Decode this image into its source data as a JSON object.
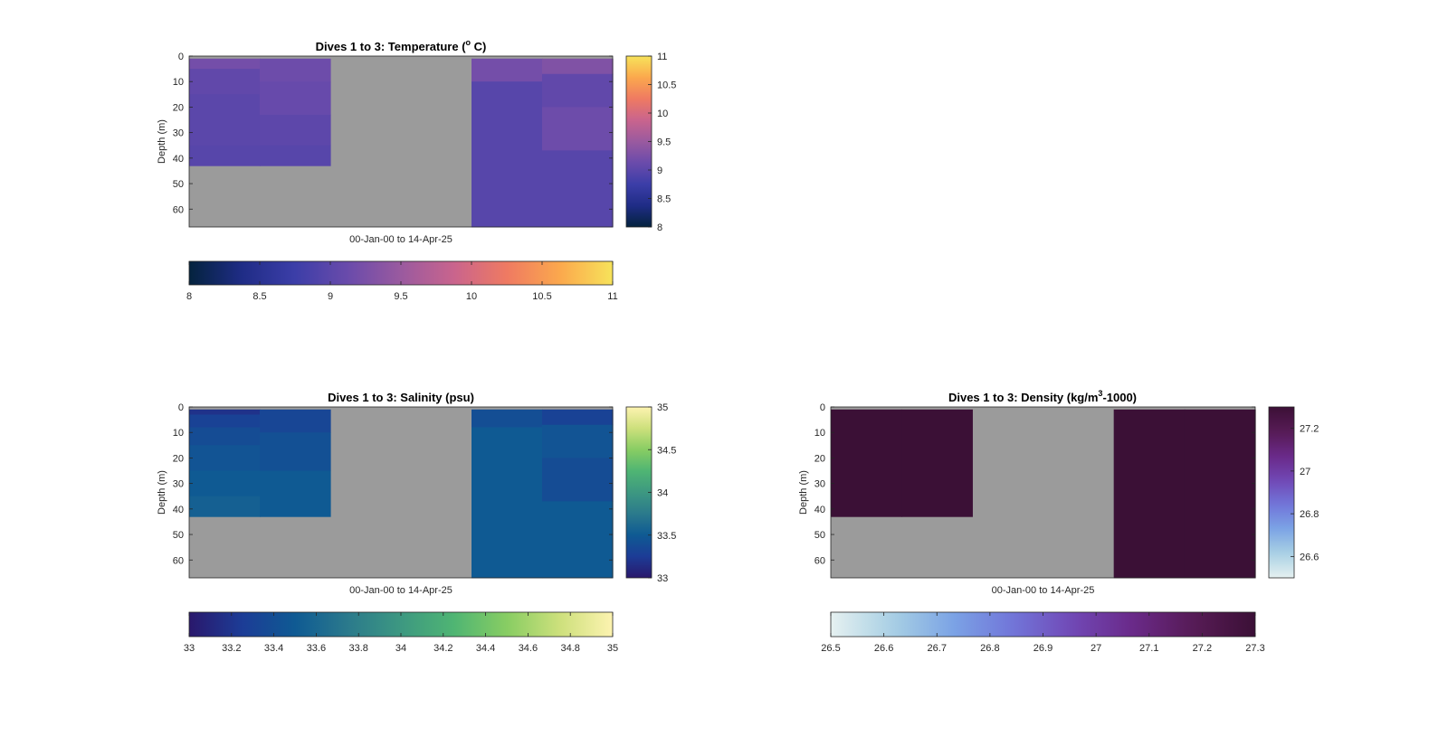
{
  "chart_data": [
    {
      "type": "heatmap",
      "title": "Dives 1 to 3: Temperature (",
      "title_sup": "o",
      "title_tail": " C)",
      "ylabel": "Depth (m)",
      "xlabel": "00-Jan-00 to 14-Apr-25",
      "ylim": [
        0,
        67
      ],
      "y_reversed": true,
      "yticks": [
        0,
        10,
        20,
        30,
        40,
        50,
        60
      ],
      "clim": [
        8,
        11
      ],
      "colormap": "thermal",
      "colorbar_ticks": [
        8,
        8.5,
        9,
        9.5,
        10,
        10.5,
        11
      ],
      "horizontal_colorbar_ticks": [
        8,
        8.5,
        9,
        9.5,
        10,
        10.5,
        11
      ],
      "nodata_color": "#9b9b9b",
      "columns": [
        {
          "cells": [
            [
              1,
              5,
              9.2
            ],
            [
              5,
              15,
              9.05
            ],
            [
              15,
              25,
              9.0
            ],
            [
              25,
              35,
              9.0
            ],
            [
              35,
              43,
              8.97
            ]
          ]
        },
        {
          "cells": [
            [
              1,
              10,
              9.15
            ],
            [
              10,
              23,
              9.1
            ],
            [
              23,
              35,
              9.02
            ],
            [
              35,
              43,
              8.97
            ]
          ]
        },
        {
          "cells": []
        },
        {
          "cells": []
        },
        {
          "cells": [
            [
              1,
              10,
              9.2
            ],
            [
              10,
              67,
              8.97
            ]
          ]
        },
        {
          "cells": [
            [
              1,
              7,
              9.3
            ],
            [
              7,
              20,
              9.05
            ],
            [
              20,
              37,
              9.15
            ],
            [
              37,
              67,
              8.97
            ]
          ]
        }
      ]
    },
    {
      "type": "heatmap",
      "title": "Dives 1 to 3: Salinity (psu)",
      "ylabel": "Depth (m)",
      "xlabel": "00-Jan-00 to 14-Apr-25",
      "ylim": [
        0,
        67
      ],
      "y_reversed": true,
      "yticks": [
        0,
        10,
        20,
        30,
        40,
        50,
        60
      ],
      "clim": [
        33,
        35
      ],
      "colormap": "haline",
      "colorbar_ticks": [
        33,
        33.5,
        34,
        34.5,
        35
      ],
      "horizontal_colorbar_ticks": [
        33,
        33.2,
        33.4,
        33.6,
        33.8,
        34,
        34.2,
        34.4,
        34.6,
        34.8,
        35
      ],
      "nodata_color": "#9b9b9b",
      "columns": [
        {
          "cells": [
            [
              1,
              3,
              33.18
            ],
            [
              3,
              8,
              33.3
            ],
            [
              8,
              15,
              33.38
            ],
            [
              15,
              25,
              33.45
            ],
            [
              25,
              35,
              33.5
            ],
            [
              35,
              43,
              33.55
            ]
          ]
        },
        {
          "cells": [
            [
              1,
              10,
              33.33
            ],
            [
              10,
              25,
              33.42
            ],
            [
              25,
              43,
              33.5
            ]
          ]
        },
        {
          "cells": []
        },
        {
          "cells": []
        },
        {
          "cells": [
            [
              1,
              8,
              33.4
            ],
            [
              8,
              67,
              33.5
            ]
          ]
        },
        {
          "cells": [
            [
              1,
              7,
              33.3
            ],
            [
              7,
              20,
              33.45
            ],
            [
              20,
              37,
              33.38
            ],
            [
              37,
              67,
              33.5
            ]
          ]
        }
      ]
    },
    {
      "type": "heatmap",
      "title": "Dives 1 to 3: Density (kg/m",
      "title_sup": "3",
      "title_tail": "-1000)",
      "ylabel": "Depth (m)",
      "xlabel": "00-Jan-00 to 14-Apr-25",
      "ylim": [
        0,
        67
      ],
      "y_reversed": true,
      "yticks": [
        0,
        10,
        20,
        30,
        40,
        50,
        60
      ],
      "clim": [
        26.5,
        27.3
      ],
      "colormap": "dense",
      "colorbar_ticks": [
        26.6,
        26.8,
        27,
        27.2
      ],
      "horizontal_colorbar_ticks": [
        26.5,
        26.6,
        26.7,
        26.8,
        26.9,
        27,
        27.1,
        27.2,
        27.3
      ],
      "nodata_color": "#9b9b9b",
      "columns": [
        {
          "cells": [
            [
              1,
              43,
              27.3
            ]
          ]
        },
        {
          "cells": [
            [
              1,
              43,
              27.3
            ]
          ]
        },
        {
          "cells": []
        },
        {
          "cells": []
        },
        {
          "cells": [
            [
              1,
              67,
              27.3
            ]
          ]
        },
        {
          "cells": [
            [
              1,
              67,
              27.3
            ]
          ]
        }
      ]
    }
  ]
}
